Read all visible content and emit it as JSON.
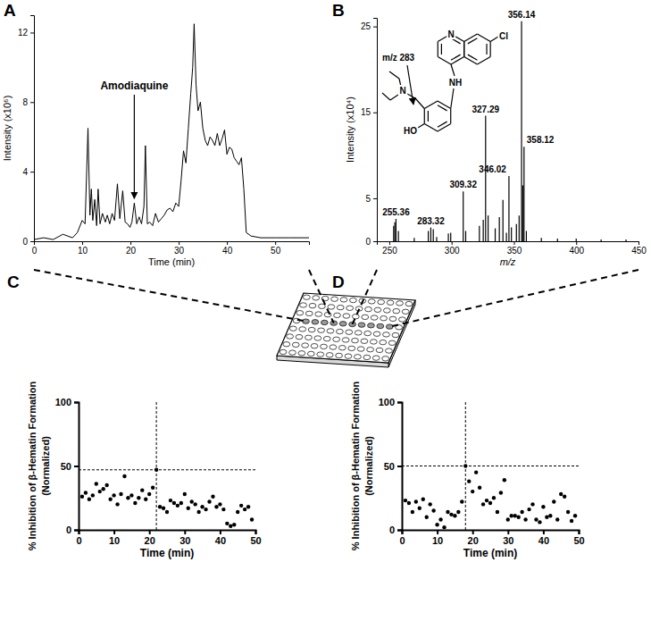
{
  "chart_data": [
    {
      "type": "line",
      "title": "A",
      "x_label": "Time (min)",
      "y_label": "Intensity (x10⁶)",
      "color": "#000000",
      "x": [
        0,
        2,
        4,
        6,
        8,
        9,
        10,
        10.6,
        11.2,
        11.6,
        11.9,
        12.2,
        12.6,
        13.0,
        13.3,
        13.7,
        14.2,
        14.8,
        15.2,
        15.7,
        16.2,
        16.7,
        17.3,
        17.8,
        18.4,
        18.9,
        19.4,
        19.9,
        20.3,
        20.8,
        21.3,
        21.8,
        22.3,
        22.8,
        23.1,
        23.5,
        24.0,
        24.6,
        25.2,
        25.8,
        26.4,
        27.0,
        27.6,
        28.2,
        28.8,
        29.4,
        30.0,
        30.5,
        31.0,
        31.5,
        32.0,
        32.5,
        32.9,
        33.2,
        33.6,
        34.0,
        34.5,
        35.0,
        35.5,
        36.0,
        36.5,
        37.0,
        37.5,
        38.0,
        38.5,
        39.0,
        39.5,
        40.0,
        40.5,
        41.0,
        41.5,
        42.0,
        42.5,
        43.0,
        43.5,
        44.0,
        45,
        47,
        50,
        53,
        57
      ],
      "values": [
        0.1,
        0.2,
        0.1,
        0.4,
        0.2,
        0.5,
        1.2,
        1.0,
        6.5,
        1.5,
        3.0,
        1.2,
        2.4,
        0.9,
        3.0,
        1.0,
        1.6,
        1.1,
        1.5,
        1.0,
        1.6,
        1.2,
        3.3,
        1.3,
        2.9,
        1.1,
        1.0,
        0.8,
        1.1,
        2.2,
        1.0,
        1.4,
        1.0,
        2.0,
        5.5,
        1.0,
        1.1,
        0.9,
        1.6,
        1.1,
        1.3,
        1.5,
        1.8,
        1.9,
        1.7,
        2.2,
        2.0,
        3.5,
        5.2,
        4.5,
        6.5,
        8.5,
        10,
        12.5,
        9,
        7.5,
        8,
        6.5,
        5.8,
        5.5,
        6.0,
        5.8,
        5.5,
        6.2,
        5.5,
        5.9,
        6.4,
        5.0,
        5.4,
        5.3,
        4.8,
        4.6,
        4.4,
        4.8,
        3.0,
        0.5,
        0.3,
        0.2,
        0.2,
        0.2,
        0.2
      ],
      "xlim": [
        0,
        57
      ],
      "ylim": [
        0,
        13
      ],
      "xticks": [
        0,
        10,
        20,
        30,
        40,
        50
      ],
      "yticks": [
        0,
        4,
        8,
        12
      ],
      "annotations": [
        {
          "text": "Amodiaquine",
          "x": 20.8
        }
      ]
    },
    {
      "type": "spectrum",
      "title": "B",
      "x_label": "m/z",
      "y_label": "Intensity (x10⁴)",
      "color": "#000000",
      "x": [
        253.5,
        254.4,
        255.36,
        257.3,
        270,
        281.3,
        283.32,
        285.3,
        288,
        297.4,
        299.3,
        309.32,
        311.3,
        322.3,
        325.4,
        327.29,
        329.3,
        335,
        338.3,
        341.2,
        344,
        346.02,
        348,
        352,
        354.2,
        356.14,
        357.1,
        358.12,
        360,
        372,
        385,
        400,
        420,
        440
      ],
      "values": [
        1.8,
        2.2,
        2.6,
        1.2,
        0.4,
        1.2,
        1.6,
        1.4,
        0.5,
        0.9,
        1.0,
        5.8,
        1.2,
        1.8,
        2.5,
        14.6,
        3.0,
        1.5,
        2.8,
        4.8,
        1.0,
        7.6,
        1.6,
        2.0,
        3.0,
        25.6,
        6.5,
        11.0,
        1.2,
        0.4,
        0.3,
        0.3,
        0.2,
        0.2
      ],
      "xlim": [
        240,
        450
      ],
      "ylim": [
        0,
        26
      ],
      "xticks": [
        250,
        300,
        350,
        400,
        450
      ],
      "yticks": [
        0,
        5,
        15,
        25
      ],
      "annotations": [
        {
          "text": "255.36",
          "x": 255.36
        },
        {
          "text": "283.32",
          "x": 283.32
        },
        {
          "text": "309.32",
          "x": 309.32
        },
        {
          "text": "327.29",
          "x": 327.29
        },
        {
          "text": "346.02",
          "x": 346.02
        },
        {
          "text": "356.14",
          "x": 356.14
        },
        {
          "text": "358.12",
          "x": 358.12
        }
      ],
      "structure": {
        "atoms": [
          "N",
          "Cl",
          "NH",
          "N",
          "HO"
        ],
        "fragment": "m/z 283"
      }
    },
    {
      "type": "scatter",
      "title": "C",
      "x_label": "Time (min)",
      "y_label": [
        "% Inhibition of β-Hematin Formation",
        "(Normalized)"
      ],
      "color": "#000000",
      "x": [
        1,
        2,
        3,
        4,
        5,
        6,
        7,
        8,
        9,
        10,
        11,
        12,
        13,
        14,
        15,
        16,
        17,
        18,
        19,
        20,
        21,
        22,
        23,
        24,
        25,
        26,
        27,
        28,
        29,
        30,
        31,
        32,
        33,
        34,
        35,
        36,
        37,
        38,
        39,
        40,
        41,
        42,
        43,
        44,
        45,
        46,
        47,
        48,
        49
      ],
      "values": [
        26,
        29,
        24,
        27,
        36,
        30,
        32,
        35,
        24,
        27,
        20,
        28,
        42,
        25,
        27,
        21,
        25,
        31,
        24,
        28,
        33,
        47,
        18,
        17,
        14,
        23,
        21,
        19,
        21,
        28,
        17,
        22,
        20,
        14,
        18,
        16,
        22,
        26,
        18,
        20,
        16,
        5,
        3,
        4,
        14,
        19,
        16,
        18,
        8
      ],
      "xlim": [
        0,
        50
      ],
      "ylim": [
        0,
        100
      ],
      "xticks": [
        0,
        10,
        20,
        30,
        40,
        50
      ],
      "yticks": [
        0,
        50,
        100
      ],
      "reference_x": 22,
      "reference_y": 47
    },
    {
      "type": "scatter",
      "title": "D",
      "x_label": "Time (min)",
      "y_label": [
        "% Inhibition of β-Hematin Formation",
        "(Normalized)"
      ],
      "color": "#000000",
      "x": [
        1,
        2,
        3,
        4,
        5,
        6,
        7,
        8,
        9,
        10,
        11,
        12,
        13,
        14,
        15,
        16,
        17,
        18,
        19,
        20,
        21,
        22,
        23,
        24,
        25,
        26,
        27,
        28,
        29,
        30,
        31,
        32,
        33,
        34,
        35,
        36,
        37,
        38,
        39,
        40,
        41,
        42,
        43,
        44,
        45,
        46,
        47,
        48,
        49
      ],
      "values": [
        23,
        21,
        14,
        22,
        17,
        24,
        10,
        20,
        15,
        4,
        8,
        2,
        14,
        12,
        11,
        14,
        22,
        50,
        38,
        30,
        45,
        33,
        20,
        23,
        21,
        25,
        14,
        29,
        39,
        8,
        11,
        11,
        10,
        14,
        8,
        16,
        20,
        8,
        6,
        18,
        10,
        11,
        22,
        8,
        28,
        26,
        14,
        7,
        11
      ],
      "xlim": [
        0,
        50
      ],
      "ylim": [
        0,
        100
      ],
      "xticks": [
        0,
        10,
        20,
        30,
        40,
        50
      ],
      "yticks": [
        0,
        50,
        100
      ],
      "reference_x": 18,
      "reference_y": 50
    }
  ]
}
